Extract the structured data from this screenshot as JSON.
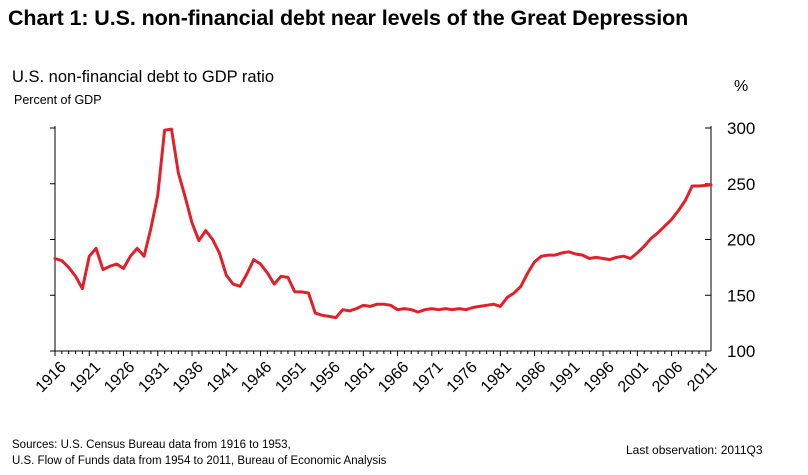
{
  "chart_data": {
    "type": "line",
    "title": "Chart 1: U.S. non-financial debt near levels of the Great Depression",
    "subtitle": "U.S. non-financial debt to GDP ratio",
    "ylabel": "Percent of GDP",
    "ylabel_right": "%",
    "ylim": [
      100,
      300
    ],
    "yticks": [
      100,
      150,
      200,
      250,
      300
    ],
    "xlim": [
      1916,
      2011.75
    ],
    "xticks": [
      "1916",
      "1921",
      "1926",
      "1931",
      "1936",
      "1941",
      "1946",
      "1951",
      "1956",
      "1961",
      "1966",
      "1971",
      "1976",
      "1981",
      "1986",
      "1991",
      "1996",
      "2001",
      "2006",
      "2011"
    ],
    "grid": false,
    "line_color": "#e0202a",
    "series": [
      {
        "name": "",
        "x": [
          1916,
          1917,
          1918,
          1919,
          1920,
          1921,
          1922,
          1923,
          1924,
          1925,
          1926,
          1927,
          1928,
          1929,
          1930,
          1931,
          1932,
          1933,
          1934,
          1935,
          1936,
          1937,
          1938,
          1939,
          1940,
          1941,
          1942,
          1943,
          1944,
          1945,
          1946,
          1947,
          1948,
          1949,
          1950,
          1951,
          1952,
          1953,
          1954,
          1955,
          1956,
          1957,
          1958,
          1959,
          1960,
          1961,
          1962,
          1963,
          1964,
          1965,
          1966,
          1967,
          1968,
          1969,
          1970,
          1971,
          1972,
          1973,
          1974,
          1975,
          1976,
          1977,
          1978,
          1979,
          1980,
          1981,
          1982,
          1983,
          1984,
          1985,
          1986,
          1987,
          1988,
          1989,
          1990,
          1991,
          1992,
          1993,
          1994,
          1995,
          1996,
          1997,
          1998,
          1999,
          2000,
          2001,
          2002,
          2003,
          2004,
          2005,
          2006,
          2007,
          2008,
          2009,
          2010,
          2011.75
        ],
        "values": [
          183,
          181,
          175,
          167,
          156,
          185,
          192,
          173,
          176,
          178,
          174,
          185,
          192,
          185,
          210,
          240,
          298,
          299,
          260,
          238,
          215,
          199,
          208,
          200,
          188,
          168,
          160,
          158,
          169,
          182,
          178,
          170,
          160,
          167,
          166,
          153,
          153,
          152,
          134,
          132,
          131,
          130,
          137,
          136,
          138,
          141,
          140,
          142,
          142,
          141,
          137,
          138,
          137,
          135,
          137,
          138,
          137,
          138,
          137,
          138,
          137,
          139,
          140,
          141,
          142,
          140,
          148,
          152,
          158,
          170,
          180,
          185,
          186,
          186,
          188,
          189,
          187,
          186,
          183,
          184,
          183,
          182,
          184,
          185,
          183,
          188,
          194,
          201,
          206,
          212,
          218,
          226,
          235,
          248,
          248,
          249
        ]
      }
    ],
    "sources_lines": [
      "Sources: U.S. Census Bureau data from 1916 to 1953,",
      "U.S. Flow of Funds data from 1954 to 2011, Bureau of Economic Analysis"
    ],
    "last_observation": "Last observation: 2011Q3"
  }
}
